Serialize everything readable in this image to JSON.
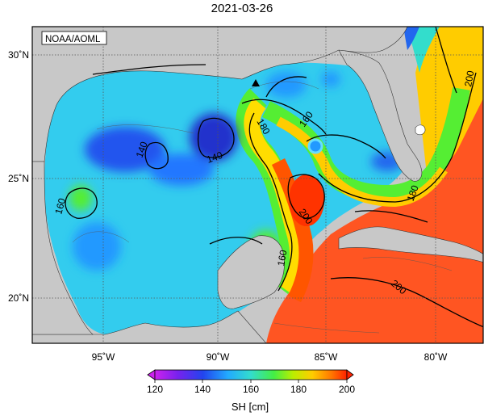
{
  "title": "2021-03-26",
  "credit": "NOAA/AOML",
  "map": {
    "lon_ticks": [
      {
        "value": -95,
        "label": "95˚W"
      },
      {
        "value": -90,
        "label": "90˚W"
      },
      {
        "value": -85,
        "label": "85˚W"
      },
      {
        "value": -80,
        "label": "80˚W"
      }
    ],
    "lat_ticks": [
      {
        "value": 30,
        "label": "30˚N"
      },
      {
        "value": 25,
        "label": "25˚N"
      },
      {
        "value": 20,
        "label": "20˚N"
      }
    ],
    "contour_labels": [
      "140",
      "140",
      "160",
      "180",
      "160",
      "200",
      "160",
      "180",
      "200",
      "200"
    ],
    "marker": "triangle"
  },
  "colorbar": {
    "ticks": [
      "120",
      "140",
      "160",
      "180",
      "200"
    ],
    "label": "SH [cm]",
    "colors": [
      "#cc22ee",
      "#5522ee",
      "#2255ff",
      "#22bbff",
      "#33ddaa",
      "#55ee33",
      "#ccee00",
      "#ffcc00",
      "#ff8800",
      "#ff3300"
    ]
  }
}
